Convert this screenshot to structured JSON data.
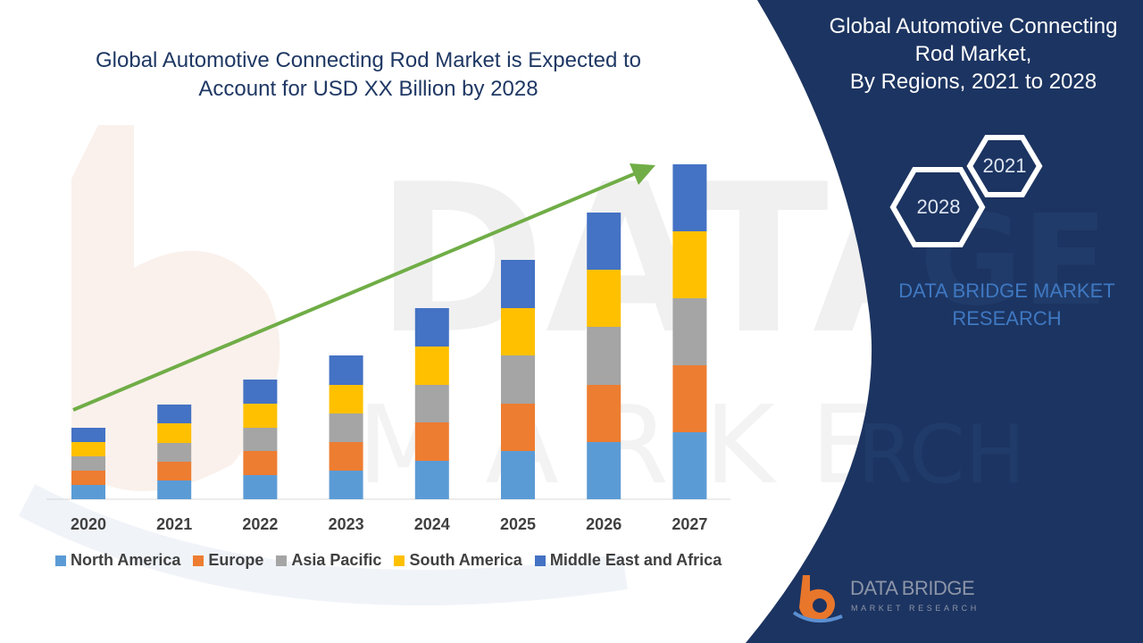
{
  "chart_data": {
    "type": "bar",
    "stacked": true,
    "title": "Global Automotive Connecting Rod Market is Expected to Account for USD XX Billion by 2028",
    "title_lines": [
      "Global Automotive Connecting Rod Market is Expected to",
      "Account for USD XX Billion by 2028"
    ],
    "categories": [
      "2020",
      "2021",
      "2022",
      "2023",
      "2024",
      "2025",
      "2026",
      "2027"
    ],
    "series": [
      {
        "name": "North America",
        "color": "#5b9bd5",
        "values": [
          16,
          21,
          27,
          32,
          43,
          54,
          64,
          75
        ]
      },
      {
        "name": "Europe",
        "color": "#ed7d31",
        "values": [
          16,
          21,
          27,
          32,
          43,
          53,
          64,
          75
        ]
      },
      {
        "name": "Asia Pacific",
        "color": "#a5a5a5",
        "values": [
          16,
          21,
          26,
          32,
          42,
          54,
          65,
          75
        ]
      },
      {
        "name": "South America",
        "color": "#ffc000",
        "values": [
          16,
          22,
          27,
          32,
          43,
          53,
          64,
          75
        ]
      },
      {
        "name": "Middle East and Africa",
        "color": "#4472c4",
        "values": [
          16,
          21,
          27,
          33,
          43,
          54,
          64,
          75
        ]
      }
    ],
    "ylim": [
      0,
      380
    ],
    "xlabel": "",
    "ylabel": "",
    "grid": false,
    "legend": "bottom",
    "trend_arrow": {
      "color": "#70ad47"
    }
  },
  "side_panel": {
    "title_lines": [
      "Global Automotive Connecting",
      "Rod Market,",
      "By Regions, 2021 to 2028"
    ],
    "hex_labels": {
      "first": "2021",
      "second": "2028"
    },
    "brand_lines": [
      "DATA BRIDGE MARKET",
      "RESEARCH"
    ],
    "background_color": "#1c3461"
  },
  "logo": {
    "name": "DATA BRIDGE",
    "subtitle": "MARKET RESEARCH"
  }
}
